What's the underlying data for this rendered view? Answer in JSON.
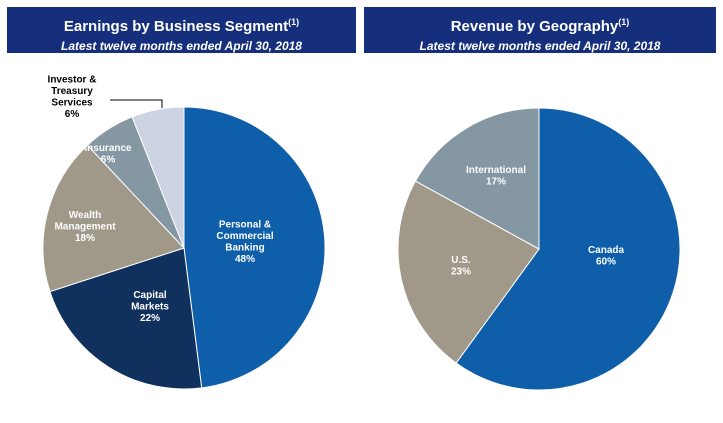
{
  "chart_data": [
    {
      "type": "pie",
      "title": "Earnings by Business Segment",
      "title_superscript": "(1)",
      "subtitle": "Latest twelve months ended April 30, 2018",
      "slices": [
        {
          "label": [
            "Personal &",
            "Commercial",
            "Banking"
          ],
          "value": 48,
          "value_label": "48%",
          "color": "#0e5eaa",
          "label_color": "#ffffff"
        },
        {
          "label": [
            "Capital",
            "Markets"
          ],
          "value": 22,
          "value_label": "22%",
          "color": "#10305e",
          "label_color": "#ffffff"
        },
        {
          "label": [
            "Wealth",
            "Management"
          ],
          "value": 18,
          "value_label": "18%",
          "color": "#a09888",
          "label_color": "#ffffff"
        },
        {
          "label": [
            "Insurance"
          ],
          "value": 6,
          "value_label": "6%",
          "color": "#8597a2",
          "label_color": "#ffffff"
        },
        {
          "label": [
            "Investor &",
            "Treasury",
            "Services"
          ],
          "value": 6,
          "value_label": "6%",
          "color": "#ccd3e2",
          "label_color": "#000000",
          "callout": true
        }
      ]
    },
    {
      "type": "pie",
      "title": "Revenue by Geography",
      "title_superscript": "(1)",
      "subtitle": "Latest twelve months ended April 30, 2018",
      "slices": [
        {
          "label": [
            "Canada"
          ],
          "value": 60,
          "value_label": "60%",
          "color": "#0e5eaa",
          "label_color": "#ffffff"
        },
        {
          "label": [
            "U.S."
          ],
          "value": 23,
          "value_label": "23%",
          "color": "#a09888",
          "label_color": "#ffffff"
        },
        {
          "label": [
            "International"
          ],
          "value": 17,
          "value_label": "17%",
          "color": "#8597a2",
          "label_color": "#ffffff"
        }
      ]
    }
  ]
}
